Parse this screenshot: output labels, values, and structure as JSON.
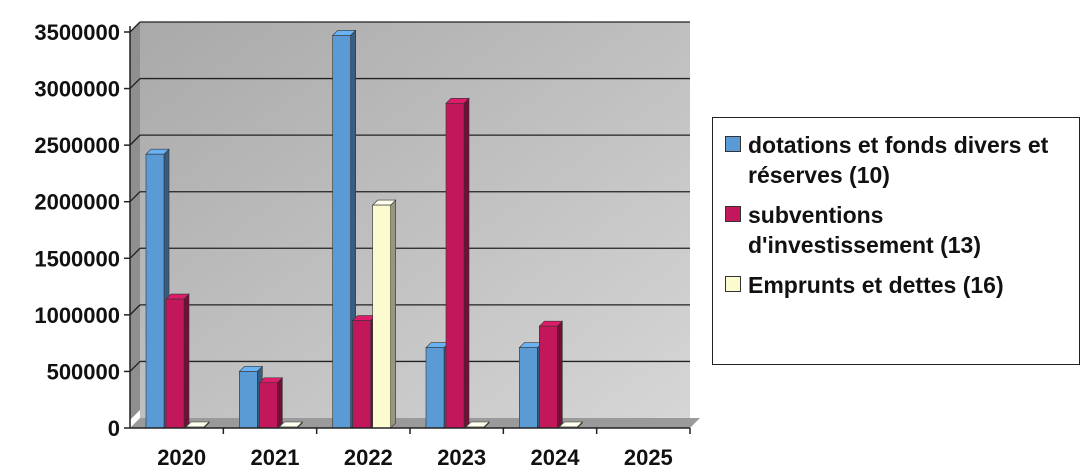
{
  "chart_data": {
    "type": "bar",
    "categories": [
      "2020",
      "2021",
      "2022",
      "2023",
      "2024",
      "2025"
    ],
    "series": [
      {
        "name": "dotations et fonds divers et réserves (10)",
        "values": [
          2420000,
          500000,
          3470000,
          710000,
          710000,
          0
        ],
        "color": "#5b9bd5"
      },
      {
        "name": "subventions d'investissement (13)",
        "values": [
          1140000,
          400000,
          950000,
          2870000,
          900000,
          0
        ],
        "color": "#c2185b"
      },
      {
        "name": "Emprunts et dettes (16)",
        "values": [
          0,
          0,
          1970000,
          0,
          0,
          0
        ],
        "color": "#fbfbcf"
      }
    ],
    "yticks": [
      "0",
      "500000",
      "1000000",
      "1500000",
      "2000000",
      "2500000",
      "3000000",
      "3500000"
    ],
    "ylim": [
      0,
      3500000
    ],
    "grid": true,
    "style": "3d-clustered-column",
    "legend_position": "right"
  }
}
